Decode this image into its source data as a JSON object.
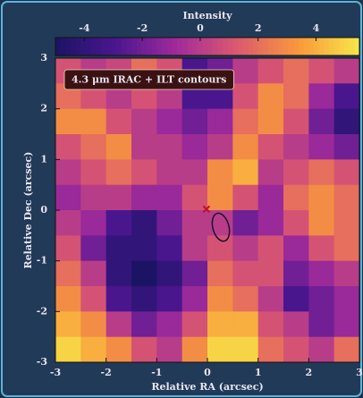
{
  "chart_data": {
    "type": "heatmap",
    "title": "4.3 μm IRAC + ILT contours",
    "colorbar_label": "Intensity",
    "x_label": "Relative RA (arcsec)",
    "y_label": "Relative Dec (arcsec)",
    "xlim": [
      -3,
      3
    ],
    "ylim": [
      -3,
      3
    ],
    "xticks": [
      -3,
      -2,
      -1,
      0,
      1,
      2,
      3
    ],
    "yticks": [
      -3,
      -2,
      -1,
      0,
      1,
      2,
      3
    ],
    "clim": [
      -5,
      5.5
    ],
    "cticks": [
      -4,
      -2,
      0,
      2,
      4
    ],
    "colormap": [
      "#1b1464",
      "#4b168f",
      "#a22b9a",
      "#dc5a6e",
      "#f9993b",
      "#f6e64a"
    ],
    "z": [
      [
        1,
        0,
        0.5,
        2,
        1,
        -3,
        -2,
        0,
        1,
        2,
        1,
        0
      ],
      [
        2,
        1,
        0,
        1,
        0,
        -3,
        -3,
        1,
        3,
        2,
        -1,
        -3
      ],
      [
        3,
        3,
        1,
        0,
        -1,
        -2,
        -1,
        2,
        3,
        1,
        -2,
        -4
      ],
      [
        1,
        2,
        3,
        0,
        0,
        -1,
        0,
        3,
        1,
        0,
        -1,
        -2
      ],
      [
        0,
        1,
        2,
        1,
        0,
        0,
        3,
        4,
        0,
        1,
        2,
        1
      ],
      [
        -1,
        0,
        0,
        -1,
        -1,
        1,
        3,
        1,
        -1,
        2,
        3,
        2
      ],
      [
        0,
        -1,
        -3,
        -4,
        -2,
        0,
        0,
        -2,
        -1,
        1,
        3,
        2
      ],
      [
        1,
        -2,
        -4,
        -4,
        -3,
        0,
        1,
        0,
        1,
        -1,
        1,
        2
      ],
      [
        2,
        0,
        -4,
        -5,
        -4,
        -2,
        2,
        1,
        1,
        -2,
        -1,
        0
      ],
      [
        3,
        1,
        -3,
        -4,
        -3,
        -1,
        3,
        2,
        0,
        -3,
        -2,
        -1
      ],
      [
        4,
        3,
        0,
        -2,
        -1,
        1,
        4,
        4,
        1,
        0,
        -2,
        -1
      ],
      [
        5,
        4,
        3,
        1,
        0,
        3,
        5,
        5,
        2,
        1,
        0,
        2
      ]
    ],
    "marker": {
      "x": -0.02,
      "y": 0.02,
      "color": "#c0102a"
    }
  }
}
